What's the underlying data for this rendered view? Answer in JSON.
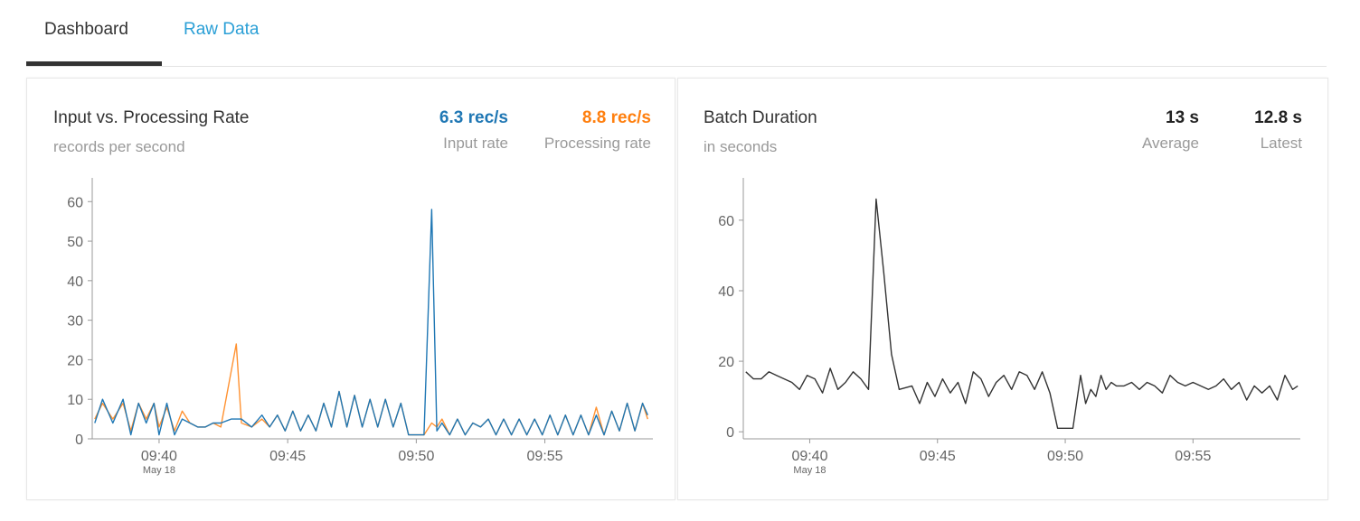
{
  "tabs": [
    {
      "label": "Dashboard",
      "active": true
    },
    {
      "label": "Raw Data",
      "active": false
    }
  ],
  "colors": {
    "input": "#1f77b4",
    "processing": "#ff7f0e",
    "batch": "#333333",
    "tab_link": "#2a9fd6"
  },
  "rate_panel": {
    "title": "Input vs. Processing Rate",
    "subtitle": "records per second",
    "input_value": "6.3 rec/s",
    "input_label": "Input rate",
    "processing_value": "8.8 rec/s",
    "processing_label": "Processing rate"
  },
  "batch_panel": {
    "title": "Batch Duration",
    "subtitle": "in seconds",
    "average_value": "13 s",
    "average_label": "Average",
    "latest_value": "12.8 s",
    "latest_label": "Latest"
  },
  "chart_data": [
    {
      "type": "line",
      "x_unit": "minute",
      "x_ticks": [
        {
          "value": 580,
          "label": "09:40",
          "sublabel": "May 18"
        },
        {
          "value": 585,
          "label": "09:45"
        },
        {
          "value": 590,
          "label": "09:50"
        },
        {
          "value": 595,
          "label": "09:55"
        }
      ],
      "xlim": [
        577.4,
        599.2
      ],
      "ylim": [
        0,
        66
      ],
      "y_ticks": [
        0,
        10,
        20,
        30,
        40,
        50,
        60
      ],
      "series": [
        {
          "name": "Input rate",
          "x": [
            577.5,
            577.8,
            578.2,
            578.6,
            578.9,
            579.2,
            579.5,
            579.8,
            580.0,
            580.3,
            580.6,
            580.9,
            581.2,
            581.5,
            581.8,
            582.1,
            582.4,
            582.8,
            583.2,
            583.6,
            584.0,
            584.3,
            584.6,
            584.9,
            585.2,
            585.5,
            585.8,
            586.1,
            586.4,
            586.7,
            587.0,
            587.3,
            587.6,
            587.9,
            588.2,
            588.5,
            588.8,
            589.1,
            589.4,
            589.7,
            590.0,
            590.3,
            590.6,
            590.8,
            591.0,
            591.3,
            591.6,
            591.9,
            592.2,
            592.5,
            592.8,
            593.1,
            593.4,
            593.7,
            594.0,
            594.3,
            594.6,
            594.9,
            595.2,
            595.5,
            595.8,
            596.1,
            596.4,
            596.7,
            597.0,
            597.3,
            597.6,
            597.9,
            598.2,
            598.5,
            598.8,
            599.0
          ],
          "values": [
            4,
            10,
            4,
            10,
            1,
            9,
            4,
            9,
            1,
            9,
            1,
            5,
            4,
            3,
            3,
            4,
            4,
            5,
            5,
            3,
            6,
            3,
            6,
            2,
            7,
            2,
            6,
            2,
            9,
            3,
            12,
            3,
            11,
            3,
            10,
            3,
            10,
            3,
            9,
            1,
            1,
            1,
            58,
            2,
            4,
            1,
            5,
            1,
            4,
            3,
            5,
            1,
            5,
            1,
            5,
            1,
            5,
            1,
            6,
            1,
            6,
            1,
            6,
            1,
            6,
            1,
            7,
            2,
            9,
            2,
            9,
            6
          ]
        },
        {
          "name": "Processing rate",
          "x": [
            577.5,
            577.8,
            578.2,
            578.6,
            578.9,
            579.2,
            579.5,
            579.8,
            580.0,
            580.3,
            580.6,
            580.9,
            581.2,
            581.5,
            581.8,
            582.1,
            582.4,
            583.0,
            583.2,
            583.6,
            584.0,
            584.3,
            584.6,
            584.9,
            585.2,
            585.5,
            585.8,
            586.1,
            586.4,
            586.7,
            587.0,
            587.3,
            587.6,
            587.9,
            588.2,
            588.5,
            588.8,
            589.1,
            589.4,
            589.7,
            590.0,
            590.3,
            590.6,
            590.8,
            591.0,
            591.3,
            591.6,
            591.9,
            592.2,
            592.5,
            592.8,
            593.1,
            593.4,
            593.7,
            594.0,
            594.3,
            594.6,
            594.9,
            595.2,
            595.5,
            595.8,
            596.1,
            596.4,
            596.7,
            597.0,
            597.3,
            597.6,
            597.9,
            598.2,
            598.5,
            598.8,
            599.0
          ],
          "values": [
            5,
            9,
            5,
            9,
            2,
            9,
            5,
            9,
            3,
            8,
            2,
            7,
            4,
            3,
            3,
            4,
            3,
            24,
            4,
            3,
            5,
            3,
            6,
            2,
            7,
            2,
            6,
            2,
            9,
            3,
            12,
            3,
            11,
            3,
            10,
            3,
            10,
            3,
            9,
            1,
            1,
            1,
            4,
            3,
            5,
            1,
            5,
            1,
            4,
            3,
            5,
            1,
            5,
            1,
            5,
            1,
            5,
            1,
            6,
            1,
            6,
            1,
            6,
            1,
            8,
            1,
            7,
            2,
            9,
            2,
            9,
            5
          ]
        }
      ]
    },
    {
      "type": "line",
      "x_unit": "minute",
      "x_ticks": [
        {
          "value": 580,
          "label": "09:40",
          "sublabel": "May 18"
        },
        {
          "value": 585,
          "label": "09:45"
        },
        {
          "value": 590,
          "label": "09:50"
        },
        {
          "value": 595,
          "label": "09:55"
        }
      ],
      "xlim": [
        577.4,
        599.2
      ],
      "ylim": [
        -2,
        72
      ],
      "y_ticks": [
        0,
        20,
        40,
        60
      ],
      "series": [
        {
          "name": "Batch Duration",
          "x": [
            577.5,
            577.8,
            578.1,
            578.4,
            578.7,
            579.0,
            579.3,
            579.6,
            579.9,
            580.2,
            580.5,
            580.8,
            581.1,
            581.4,
            581.7,
            582.0,
            582.3,
            582.6,
            582.9,
            583.2,
            583.5,
            584.0,
            584.3,
            584.6,
            584.9,
            585.2,
            585.5,
            585.8,
            586.1,
            586.4,
            586.7,
            587.0,
            587.3,
            587.6,
            587.9,
            588.2,
            588.5,
            588.8,
            589.1,
            589.4,
            589.7,
            590.0,
            590.3,
            590.6,
            590.8,
            591.0,
            591.2,
            591.4,
            591.6,
            591.8,
            592.0,
            592.3,
            592.6,
            592.9,
            593.2,
            593.5,
            593.8,
            594.1,
            594.4,
            594.7,
            595.0,
            595.3,
            595.6,
            595.9,
            596.2,
            596.5,
            596.8,
            597.1,
            597.4,
            597.7,
            598.0,
            598.3,
            598.6,
            598.9,
            599.1
          ],
          "values": [
            17,
            15,
            15,
            17,
            16,
            15,
            14,
            12,
            16,
            15,
            11,
            18,
            12,
            14,
            17,
            15,
            12,
            66,
            45,
            22,
            12,
            13,
            8,
            14,
            10,
            15,
            11,
            14,
            8,
            17,
            15,
            10,
            14,
            16,
            12,
            17,
            16,
            12,
            17,
            11,
            1,
            1,
            1,
            16,
            8,
            12,
            10,
            16,
            12,
            14,
            13,
            13,
            14,
            12,
            14,
            13,
            11,
            16,
            14,
            13,
            14,
            13,
            12,
            13,
            15,
            12,
            14,
            9,
            13,
            11,
            13,
            9,
            16,
            12,
            13
          ]
        }
      ]
    }
  ]
}
